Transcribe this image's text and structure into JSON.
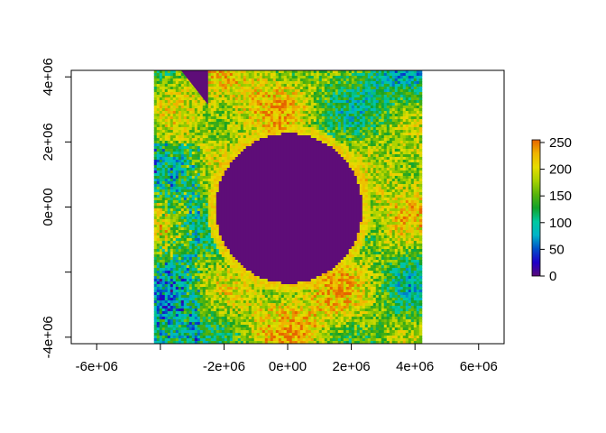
{
  "chart_data": {
    "type": "heatmap",
    "title": "",
    "xlabel": "",
    "ylabel": "",
    "xlim": [
      -6800000,
      6800000
    ],
    "ylim": [
      -4200000,
      4200000
    ],
    "x_ticks": [
      {
        "value": -6000000,
        "label": "-6e+06"
      },
      {
        "value": -4000000,
        "label": ""
      },
      {
        "value": -2000000,
        "label": "-2e+06"
      },
      {
        "value": 0,
        "label": "0e+00"
      },
      {
        "value": 2000000,
        "label": "2e+06"
      },
      {
        "value": 4000000,
        "label": "4e+06"
      },
      {
        "value": 6000000,
        "label": "6e+06"
      }
    ],
    "y_ticks": [
      {
        "value": -4000000,
        "label": "-4e+06"
      },
      {
        "value": -2000000,
        "label": ""
      },
      {
        "value": 0,
        "label": "0e+00"
      },
      {
        "value": 2000000,
        "label": "2e+06"
      },
      {
        "value": 4000000,
        "label": "4e+06"
      }
    ],
    "raster_extent": {
      "xmin": -4200000,
      "xmax": 4200000,
      "ymin": -4200000,
      "ymax": 4200000
    },
    "nodata_region": {
      "shape": "circle",
      "center": [
        0,
        0
      ],
      "radius": 2300000,
      "value": 0
    },
    "value_range": [
      0,
      255
    ],
    "legend": {
      "placement": "right",
      "ticks": [
        {
          "value": 0,
          "label": "0"
        },
        {
          "value": 50,
          "label": "50"
        },
        {
          "value": 100,
          "label": "100"
        },
        {
          "value": 150,
          "label": "150"
        },
        {
          "value": 200,
          "label": "200"
        },
        {
          "value": 250,
          "label": "250"
        }
      ]
    },
    "colors": {
      "scale": [
        "#5a0b78",
        "#1f00c8",
        "#0050c8",
        "#00b4c8",
        "#00c8a0",
        "#12a22a",
        "#5ab40a",
        "#a8d200",
        "#e6dc00",
        "#f0b400",
        "#e66400"
      ],
      "nodata": "#5e0d78"
    }
  }
}
